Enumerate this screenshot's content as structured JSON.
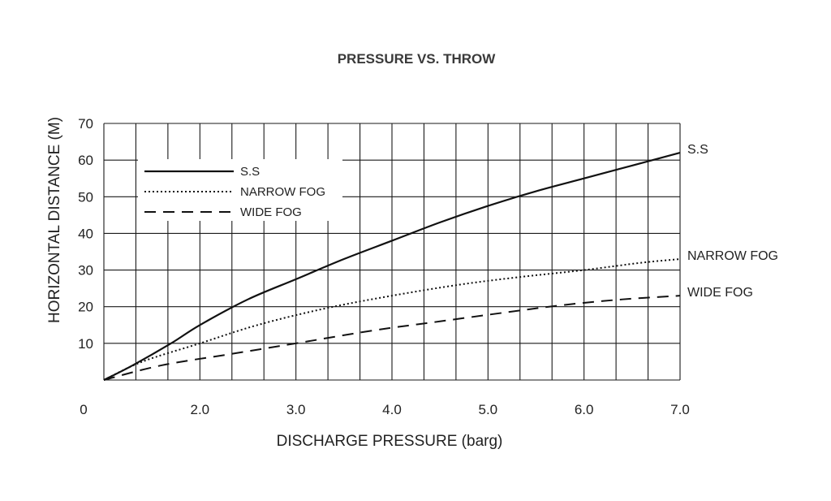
{
  "chart_data": {
    "type": "line",
    "title": "PRESSURE VS. THROW",
    "xlabel": "DISCHARGE PRESSURE (barg)",
    "ylabel": "HORIZONTAL DISTANCE (M)",
    "xlim": [
      1.0,
      7.0
    ],
    "ylim": [
      0,
      70
    ],
    "x_tick_labels": [
      {
        "value": 1.0,
        "label": "0"
      },
      {
        "value": 2.0,
        "label": "2.0"
      },
      {
        "value": 3.0,
        "label": "3.0"
      },
      {
        "value": 4.0,
        "label": "4.0"
      },
      {
        "value": 5.0,
        "label": "5.0"
      },
      {
        "value": 6.0,
        "label": "6.0"
      },
      {
        "value": 7.0,
        "label": "7.0"
      }
    ],
    "y_tick_labels": [
      {
        "value": 10,
        "label": "10"
      },
      {
        "value": 20,
        "label": "20"
      },
      {
        "value": 30,
        "label": "30"
      },
      {
        "value": 40,
        "label": "40"
      },
      {
        "value": 50,
        "label": "50"
      },
      {
        "value": 60,
        "label": "60"
      },
      {
        "value": 70,
        "label": "70"
      }
    ],
    "grid": true,
    "grid_x_step": 0.3333,
    "grid_y_step": 10,
    "legend": {
      "position": "top-left",
      "entries": [
        {
          "label": "S.S",
          "style": "solid"
        },
        {
          "label": "NARROW FOG",
          "style": "dotted"
        },
        {
          "label": "WIDE FOG",
          "style": "dashed"
        }
      ]
    },
    "series": [
      {
        "name": "S.S",
        "style": "solid",
        "end_label": "S.S",
        "points": [
          [
            1.0,
            0
          ],
          [
            1.3,
            4
          ],
          [
            1.7,
            10
          ],
          [
            2.0,
            15
          ],
          [
            2.5,
            22
          ],
          [
            3.0,
            27.5
          ],
          [
            3.5,
            33
          ],
          [
            4.0,
            38
          ],
          [
            4.5,
            43
          ],
          [
            5.0,
            47.5
          ],
          [
            5.5,
            51.5
          ],
          [
            6.0,
            55
          ],
          [
            6.5,
            58.5
          ],
          [
            7.0,
            62
          ]
        ]
      },
      {
        "name": "NARROW FOG",
        "style": "dotted",
        "end_label": "NARROW FOG",
        "points": [
          [
            1.0,
            0
          ],
          [
            1.4,
            5
          ],
          [
            2.0,
            10
          ],
          [
            2.6,
            15
          ],
          [
            3.3,
            19.5
          ],
          [
            4.0,
            23
          ],
          [
            4.7,
            26
          ],
          [
            5.3,
            28
          ],
          [
            6.0,
            30
          ],
          [
            6.6,
            32
          ],
          [
            7.0,
            33
          ]
        ]
      },
      {
        "name": "WIDE FOG",
        "style": "dashed",
        "end_label": "WIDE FOG",
        "points": [
          [
            1.0,
            0
          ],
          [
            1.6,
            4
          ],
          [
            2.3,
            7
          ],
          [
            3.0,
            10
          ],
          [
            3.8,
            13.5
          ],
          [
            4.5,
            16
          ],
          [
            5.2,
            18.5
          ],
          [
            5.8,
            20.5
          ],
          [
            6.4,
            22
          ],
          [
            7.0,
            23
          ]
        ]
      }
    ]
  }
}
